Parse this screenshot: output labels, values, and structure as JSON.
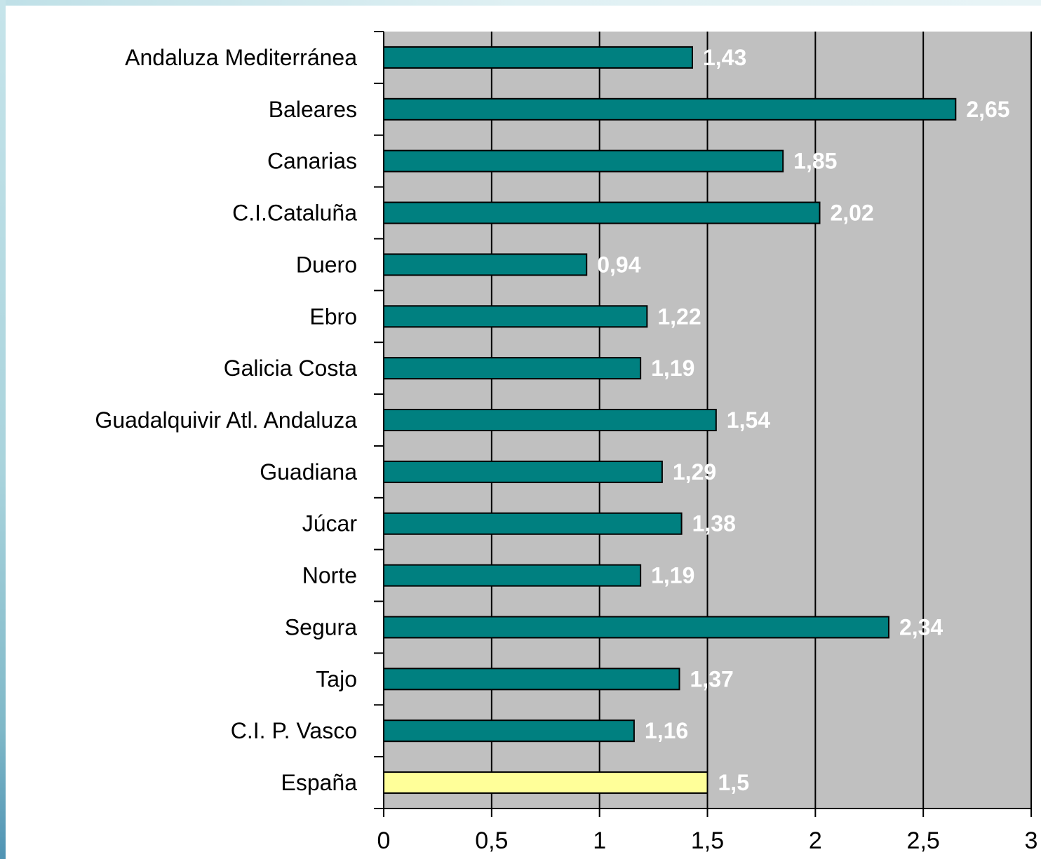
{
  "colors": {
    "plot_background": "#c0c0c0",
    "bar": "#008080",
    "bar_highlight": "#ffff99",
    "bar_border": "#000000",
    "gridline": "#000000",
    "data_label": "#ffffff"
  },
  "chart_data": {
    "type": "bar",
    "orientation": "horizontal",
    "title": "",
    "xlabel": "",
    "ylabel": "",
    "xlim": [
      0,
      3
    ],
    "x_ticks": [
      "0",
      "0,5",
      "1",
      "1,5",
      "2",
      "2,5",
      "3"
    ],
    "grid": "vertical major gridlines on",
    "legend": "none",
    "categories": [
      "Andaluza Mediterránea",
      "Baleares",
      "Canarias",
      "C.I.Cataluña",
      "Duero",
      "Ebro",
      "Galicia Costa",
      "Guadalquivir  Atl. Andaluza",
      "Guadiana",
      "Júcar",
      "Norte",
      "Segura",
      "Tajo",
      "C.I. P. Vasco",
      "España"
    ],
    "values": [
      1.43,
      2.65,
      1.85,
      2.02,
      0.94,
      1.22,
      1.19,
      1.54,
      1.29,
      1.38,
      1.19,
      2.34,
      1.37,
      1.16,
      1.5
    ],
    "value_labels": [
      "1,43",
      "2,65",
      "1,85",
      "2,02",
      "0,94",
      "1,22",
      "1,19",
      "1,54",
      "1,29",
      "1,38",
      "1,19",
      "2,34",
      "1,37",
      "1,16",
      "1,5"
    ],
    "highlight_category": "España"
  }
}
